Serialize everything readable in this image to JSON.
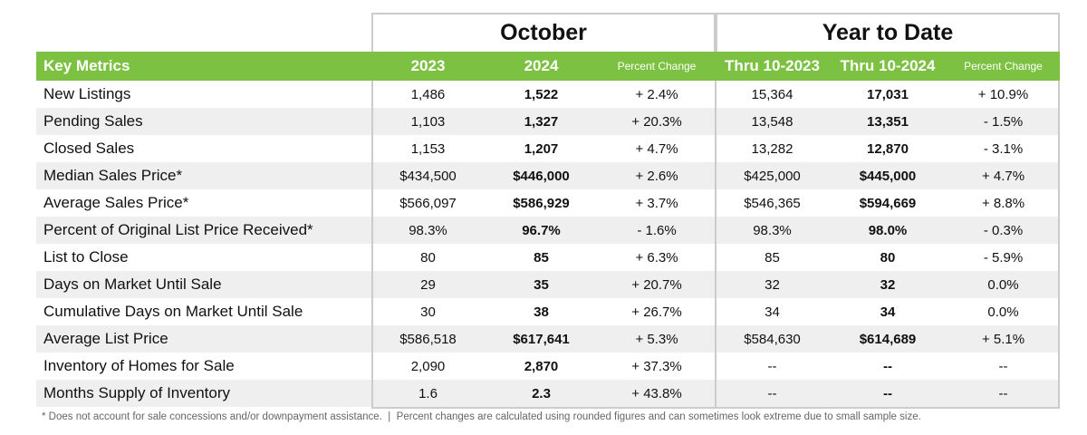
{
  "group_headers": [
    "October",
    "Year to Date"
  ],
  "columns": [
    "Key Metrics",
    "2023",
    "2024",
    "Percent Change",
    "Thru 10-2023",
    "Thru 10-2024",
    "Percent Change"
  ],
  "rows": [
    [
      "New Listings",
      "1,486",
      "1,522",
      "+ 2.4%",
      "15,364",
      "17,031",
      "+ 10.9%"
    ],
    [
      "Pending Sales",
      "1,103",
      "1,327",
      "+ 20.3%",
      "13,548",
      "13,351",
      "- 1.5%"
    ],
    [
      "Closed Sales",
      "1,153",
      "1,207",
      "+ 4.7%",
      "13,282",
      "12,870",
      "- 3.1%"
    ],
    [
      "Median Sales Price*",
      "$434,500",
      "$446,000",
      "+ 2.6%",
      "$425,000",
      "$445,000",
      "+ 4.7%"
    ],
    [
      "Average Sales Price*",
      "$566,097",
      "$586,929",
      "+ 3.7%",
      "$546,365",
      "$594,669",
      "+ 8.8%"
    ],
    [
      "Percent of Original List Price Received*",
      "98.3%",
      "96.7%",
      "- 1.6%",
      "98.3%",
      "98.0%",
      "- 0.3%"
    ],
    [
      "List to Close",
      "80",
      "85",
      "+ 6.3%",
      "85",
      "80",
      "- 5.9%"
    ],
    [
      "Days on Market Until Sale",
      "29",
      "35",
      "+ 20.7%",
      "32",
      "32",
      "0.0%"
    ],
    [
      "Cumulative Days on Market Until Sale",
      "30",
      "38",
      "+ 26.7%",
      "34",
      "34",
      "0.0%"
    ],
    [
      "Average List Price",
      "$586,518",
      "$617,641",
      "+ 5.3%",
      "$584,630",
      "$614,689",
      "+ 5.1%"
    ],
    [
      "Inventory of Homes for Sale",
      "2,090",
      "2,870",
      "+ 37.3%",
      "--",
      "--",
      "--"
    ],
    [
      "Months Supply of Inventory",
      "1.6",
      "2.3",
      "+ 43.8%",
      "--",
      "--",
      "--"
    ]
  ],
  "footnote": "* Does not account for sale concessions and/or downpayment assistance.  |  Percent changes are calculated using rounded figures and can sometimes look extreme due to small sample size."
}
